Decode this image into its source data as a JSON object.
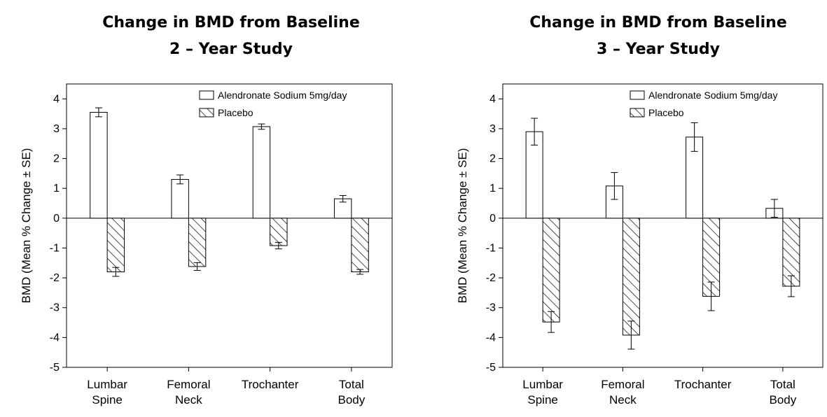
{
  "chart_data": [
    {
      "type": "bar",
      "title": "Change in BMD from Baseline",
      "subtitle": "2 – Year Study",
      "ylabel": "BMD (Mean % Change ± SE)",
      "xlabel": "",
      "ylim": [
        -5,
        4.5
      ],
      "yticks": [
        4,
        3,
        2,
        1,
        0,
        -1,
        -2,
        -3,
        -4,
        -5
      ],
      "categories": [
        [
          "Lumbar",
          "Spine"
        ],
        [
          "Femoral",
          "Neck"
        ],
        [
          "Trochanter"
        ],
        [
          "Total",
          "Body"
        ]
      ],
      "legend_position": "top-right",
      "grid": false,
      "series": [
        {
          "name": "Alendronate Sodium 5mg/day",
          "pattern": "open",
          "values": [
            3.55,
            1.3,
            3.07,
            0.65
          ],
          "errors": [
            0.15,
            0.15,
            0.09,
            0.11
          ]
        },
        {
          "name": "Placebo",
          "pattern": "hatched",
          "values": [
            -1.8,
            -1.62,
            -0.92,
            -1.8
          ],
          "errors": [
            0.15,
            0.13,
            0.11,
            0.08
          ]
        }
      ]
    },
    {
      "type": "bar",
      "title": "Change in BMD from Baseline",
      "subtitle": "3 – Year Study",
      "ylabel": "BMD (Mean % Change ± SE)",
      "xlabel": "",
      "ylim": [
        -5,
        4.5
      ],
      "yticks": [
        4,
        3,
        2,
        1,
        0,
        -1,
        -2,
        -3,
        -4,
        -5
      ],
      "categories": [
        [
          "Lumbar",
          "Spine"
        ],
        [
          "Femoral",
          "Neck"
        ],
        [
          "Trochanter"
        ],
        [
          "Total",
          "Body"
        ]
      ],
      "legend_position": "top-right",
      "grid": false,
      "series": [
        {
          "name": "Alendronate Sodium 5mg/day",
          "pattern": "open",
          "values": [
            2.9,
            1.08,
            2.72,
            0.33
          ],
          "errors": [
            0.45,
            0.45,
            0.48,
            0.3
          ]
        },
        {
          "name": "Placebo",
          "pattern": "hatched",
          "values": [
            -3.48,
            -3.92,
            -2.62,
            -2.28
          ],
          "errors": [
            0.35,
            0.47,
            0.48,
            0.35
          ]
        }
      ]
    }
  ]
}
